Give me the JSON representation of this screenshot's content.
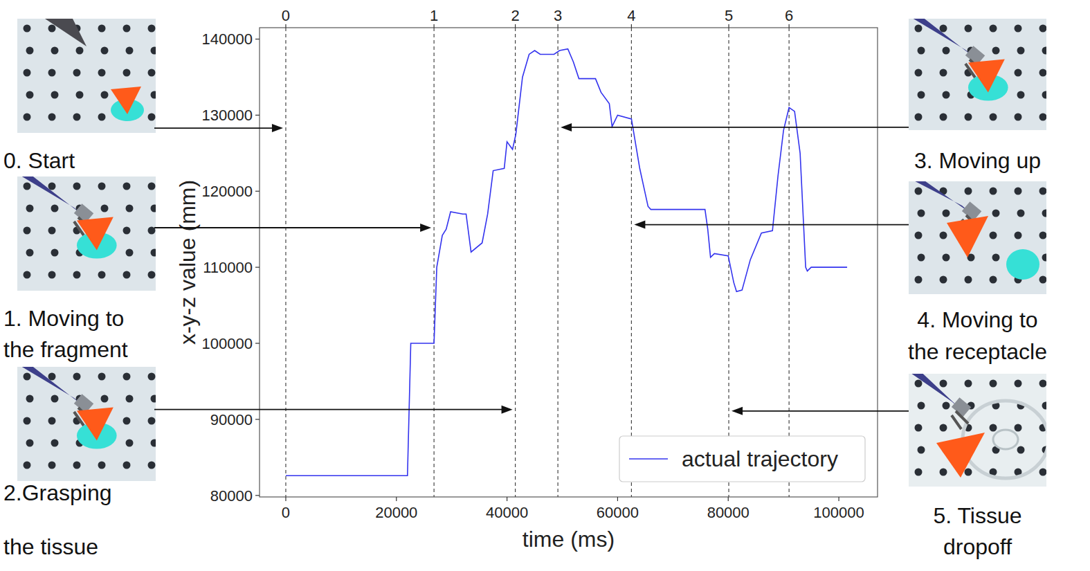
{
  "chart_data": {
    "type": "line",
    "x_label": "time (ms)",
    "y_label": "x-y-z value (mm)",
    "xlim": [
      -4750,
      107000
    ],
    "ylim": [
      79800,
      141500
    ],
    "xticks": [
      0,
      20000,
      40000,
      60000,
      80000,
      100000
    ],
    "yticks": [
      80000,
      90000,
      100000,
      110000,
      120000,
      130000,
      140000
    ],
    "legend": "lower right",
    "x": [
      0,
      22000,
      22600,
      26800,
      27300,
      28300,
      29000,
      29800,
      32000,
      32600,
      33500,
      35500,
      36500,
      37500,
      39500,
      40000,
      41000,
      41600,
      42800,
      44000,
      45000,
      46000,
      48500,
      49500,
      51000,
      52000,
      53000,
      56000,
      57000,
      58500,
      59000,
      60000,
      62500,
      64000,
      65500,
      66000,
      75800,
      76300,
      76800,
      77500,
      80000,
      81000,
      81500,
      82500,
      84000,
      86000,
      88000,
      89000,
      90000,
      91000,
      92000,
      93000,
      94000,
      94300,
      95000,
      101500
    ],
    "series": [
      {
        "name": "actual trajectory",
        "color": "#3333ee",
        "line_style": "solid",
        "values": [
          82600,
          82600,
          100000,
          100000,
          110000,
          114200,
          115000,
          117300,
          117000,
          117000,
          112000,
          113200,
          117000,
          122700,
          123000,
          126500,
          125500,
          127500,
          135000,
          138000,
          138500,
          138000,
          138000,
          138500,
          138700,
          137000,
          134800,
          134800,
          133000,
          131500,
          128500,
          130000,
          129500,
          123000,
          118000,
          117600,
          117600,
          115000,
          111300,
          111800,
          111500,
          108000,
          106800,
          107000,
          111000,
          114500,
          114800,
          122000,
          128000,
          131000,
          130500,
          125000,
          110000,
          109500,
          110000,
          110000
        ]
      }
    ],
    "events": [
      {
        "label": "0",
        "x": 0
      },
      {
        "label": "1",
        "x": 26800
      },
      {
        "label": "2",
        "x": 41500
      },
      {
        "label": "3",
        "x": 49200
      },
      {
        "label": "4",
        "x": 62500
      },
      {
        "label": "5",
        "x": 80100
      },
      {
        "label": "6",
        "x": 91000
      }
    ],
    "annotations": [
      {
        "event": "0",
        "side": "left",
        "arrow_y": 128300,
        "caption_lines": [
          "0. Start"
        ]
      },
      {
        "event": "1",
        "side": "left",
        "arrow_y": 115200,
        "caption_lines": [
          "1. Moving to",
          "the fragment"
        ]
      },
      {
        "event": "2",
        "side": "left",
        "arrow_y": 91300,
        "caption_lines": [
          "2.Grasping",
          "the tissue"
        ]
      },
      {
        "event": "3",
        "side": "right",
        "arrow_y": 128400,
        "caption_lines": [
          "3. Moving up"
        ]
      },
      {
        "event": "4",
        "side": "right",
        "arrow_y": 115600,
        "caption_lines": [
          "4. Moving to",
          "the receptacle"
        ]
      },
      {
        "event": "5",
        "side": "right",
        "arrow_y": 91100,
        "caption_lines": [
          "5. Tissue",
          "dropoff"
        ]
      }
    ]
  }
}
